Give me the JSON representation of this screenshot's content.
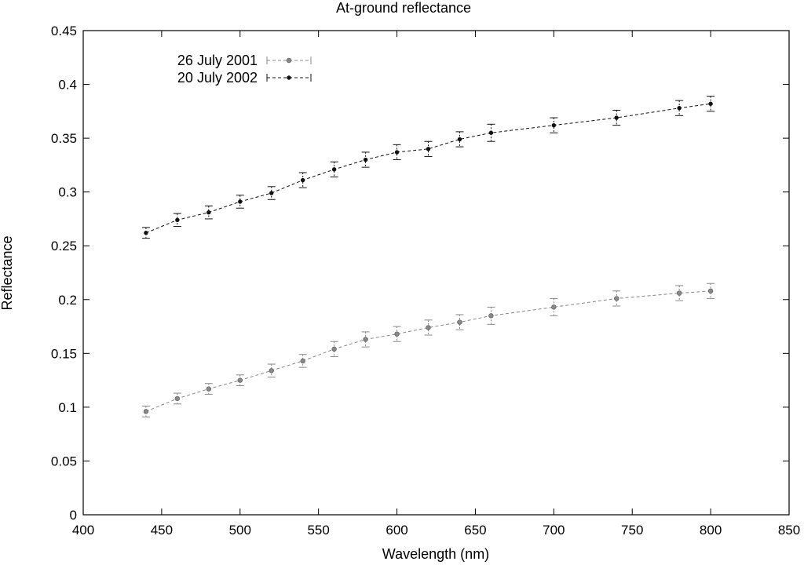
{
  "chart_data": {
    "type": "line",
    "title": "At-ground reflectance",
    "xlabel": "Wavelength (nm)",
    "ylabel": "Reflectance",
    "xlim": [
      400,
      850
    ],
    "ylim": [
      0,
      0.45
    ],
    "x_ticks": [
      "400",
      "450",
      "500",
      "550",
      "600",
      "650",
      "700",
      "750",
      "800",
      "850"
    ],
    "y_ticks": [
      "0",
      "0.05",
      "0.1",
      "0.15",
      "0.2",
      "0.25",
      "0.3",
      "0.35",
      "0.4",
      "0.45"
    ],
    "grid": false,
    "legend_position": "top-left",
    "error_bars": true,
    "x": [
      440,
      460,
      480,
      500,
      520,
      540,
      560,
      580,
      600,
      620,
      640,
      660,
      700,
      740,
      780,
      800
    ],
    "series": [
      {
        "name": "26 July 2001",
        "color": "#888888",
        "values": [
          0.096,
          0.108,
          0.117,
          0.125,
          0.134,
          0.143,
          0.154,
          0.163,
          0.168,
          0.174,
          0.179,
          0.185,
          0.193,
          0.201,
          0.206,
          0.208
        ],
        "errors": [
          0.005,
          0.005,
          0.005,
          0.005,
          0.006,
          0.006,
          0.007,
          0.007,
          0.007,
          0.007,
          0.007,
          0.008,
          0.008,
          0.007,
          0.007,
          0.007
        ]
      },
      {
        "name": "20 July 2002",
        "color": "#111111",
        "values": [
          0.262,
          0.274,
          0.281,
          0.291,
          0.299,
          0.311,
          0.321,
          0.33,
          0.337,
          0.34,
          0.349,
          0.355,
          0.362,
          0.369,
          0.378,
          0.382
        ],
        "errors": [
          0.005,
          0.006,
          0.006,
          0.006,
          0.006,
          0.007,
          0.007,
          0.007,
          0.007,
          0.007,
          0.007,
          0.008,
          0.007,
          0.007,
          0.007,
          0.007
        ]
      }
    ]
  }
}
